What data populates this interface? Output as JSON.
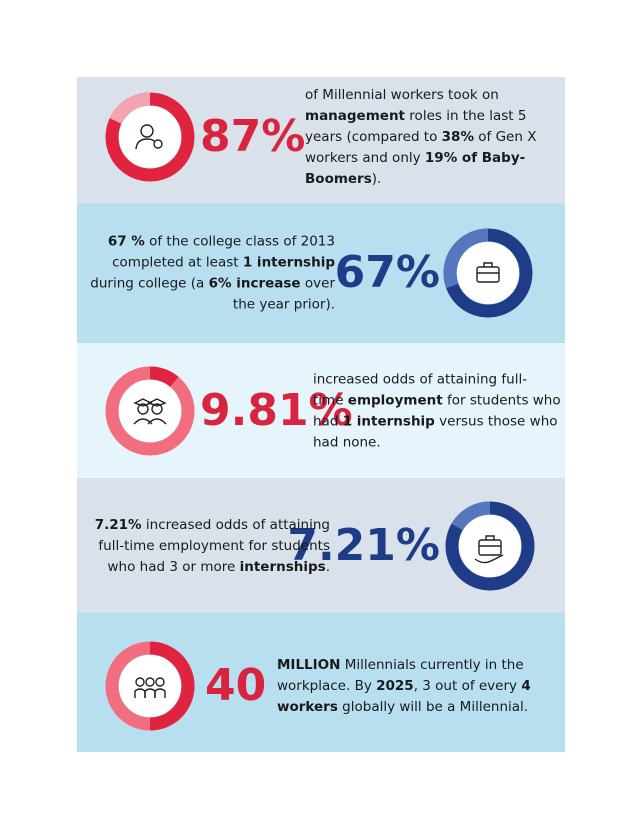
{
  "panels": [
    {
      "stat": "87%",
      "color": "#d8243f",
      "lines": [
        [
          {
            "text": "of Millennial workers took on",
            "bold": false
          }
        ],
        [
          {
            "text": "management",
            "bold": true
          },
          {
            "text": " roles in the last 5",
            "bold": false
          }
        ],
        [
          {
            "text": "years (compared to ",
            "bold": false
          },
          {
            "text": "38%",
            "bold": true
          },
          {
            "text": " of Gen X",
            "bold": false
          }
        ],
        [
          {
            "text": "workers and only ",
            "bold": false
          },
          {
            "text": "19% of Baby-",
            "bold": true
          }
        ],
        [
          {
            "text": "Boomers",
            "bold": true
          },
          {
            "text": ").",
            "bold": false
          }
        ]
      ]
    },
    {
      "stat": "67%",
      "color": "#1f3c88",
      "lines": [
        [
          {
            "text": "67 %",
            "bold": true
          },
          {
            "text": " of the college class of 2013",
            "bold": false
          }
        ],
        [
          {
            "text": "completed at least ",
            "bold": false
          },
          {
            "text": "1 internship",
            "bold": true
          }
        ],
        [
          {
            "text": "during college (a ",
            "bold": false
          },
          {
            "text": "6% increase",
            "bold": true
          },
          {
            "text": " over",
            "bold": false
          }
        ],
        [
          {
            "text": "the year prior).",
            "bold": false
          }
        ]
      ]
    },
    {
      "stat": "9.81%",
      "color": "#d8243f",
      "lines": [
        [
          {
            "text": "increased odds of attaining full-",
            "bold": false
          }
        ],
        [
          {
            "text": "time ",
            "bold": false
          },
          {
            "text": "employment",
            "bold": true
          },
          {
            "text": " for students who",
            "bold": false
          }
        ],
        [
          {
            "text": "had ",
            "bold": false
          },
          {
            "text": "1 internship",
            "bold": true
          },
          {
            "text": " versus those who",
            "bold": false
          }
        ],
        [
          {
            "text": "had none.",
            "bold": false
          }
        ]
      ]
    },
    {
      "stat": "7.21%",
      "color": "#1f3c88",
      "lines": [
        [
          {
            "text": "7.21%",
            "bold": true
          },
          {
            "text": " increased odds of attaining",
            "bold": false
          }
        ],
        [
          {
            "text": "full-time employment for students",
            "bold": false
          }
        ],
        [
          {
            "text": "who had 3 or more ",
            "bold": false
          },
          {
            "text": "internships",
            "bold": true
          },
          {
            "text": ".",
            "bold": false
          }
        ]
      ]
    },
    {
      "stat": "40",
      "color": "#d8243f",
      "lines": [
        [
          {
            "text": "MILLION",
            "bold": true
          },
          {
            "text": " Millennials currently in the",
            "bold": false
          }
        ],
        [
          {
            "text": "workplace. By ",
            "bold": false
          },
          {
            "text": "2025",
            "bold": true
          },
          {
            "text": ", 3 out of every ",
            "bold": false
          },
          {
            "text": "4",
            "bold": true
          }
        ],
        [
          {
            "text": "workers",
            "bold": true
          },
          {
            "text": " globally will be a Millennial.",
            "bold": false
          }
        ]
      ]
    }
  ]
}
